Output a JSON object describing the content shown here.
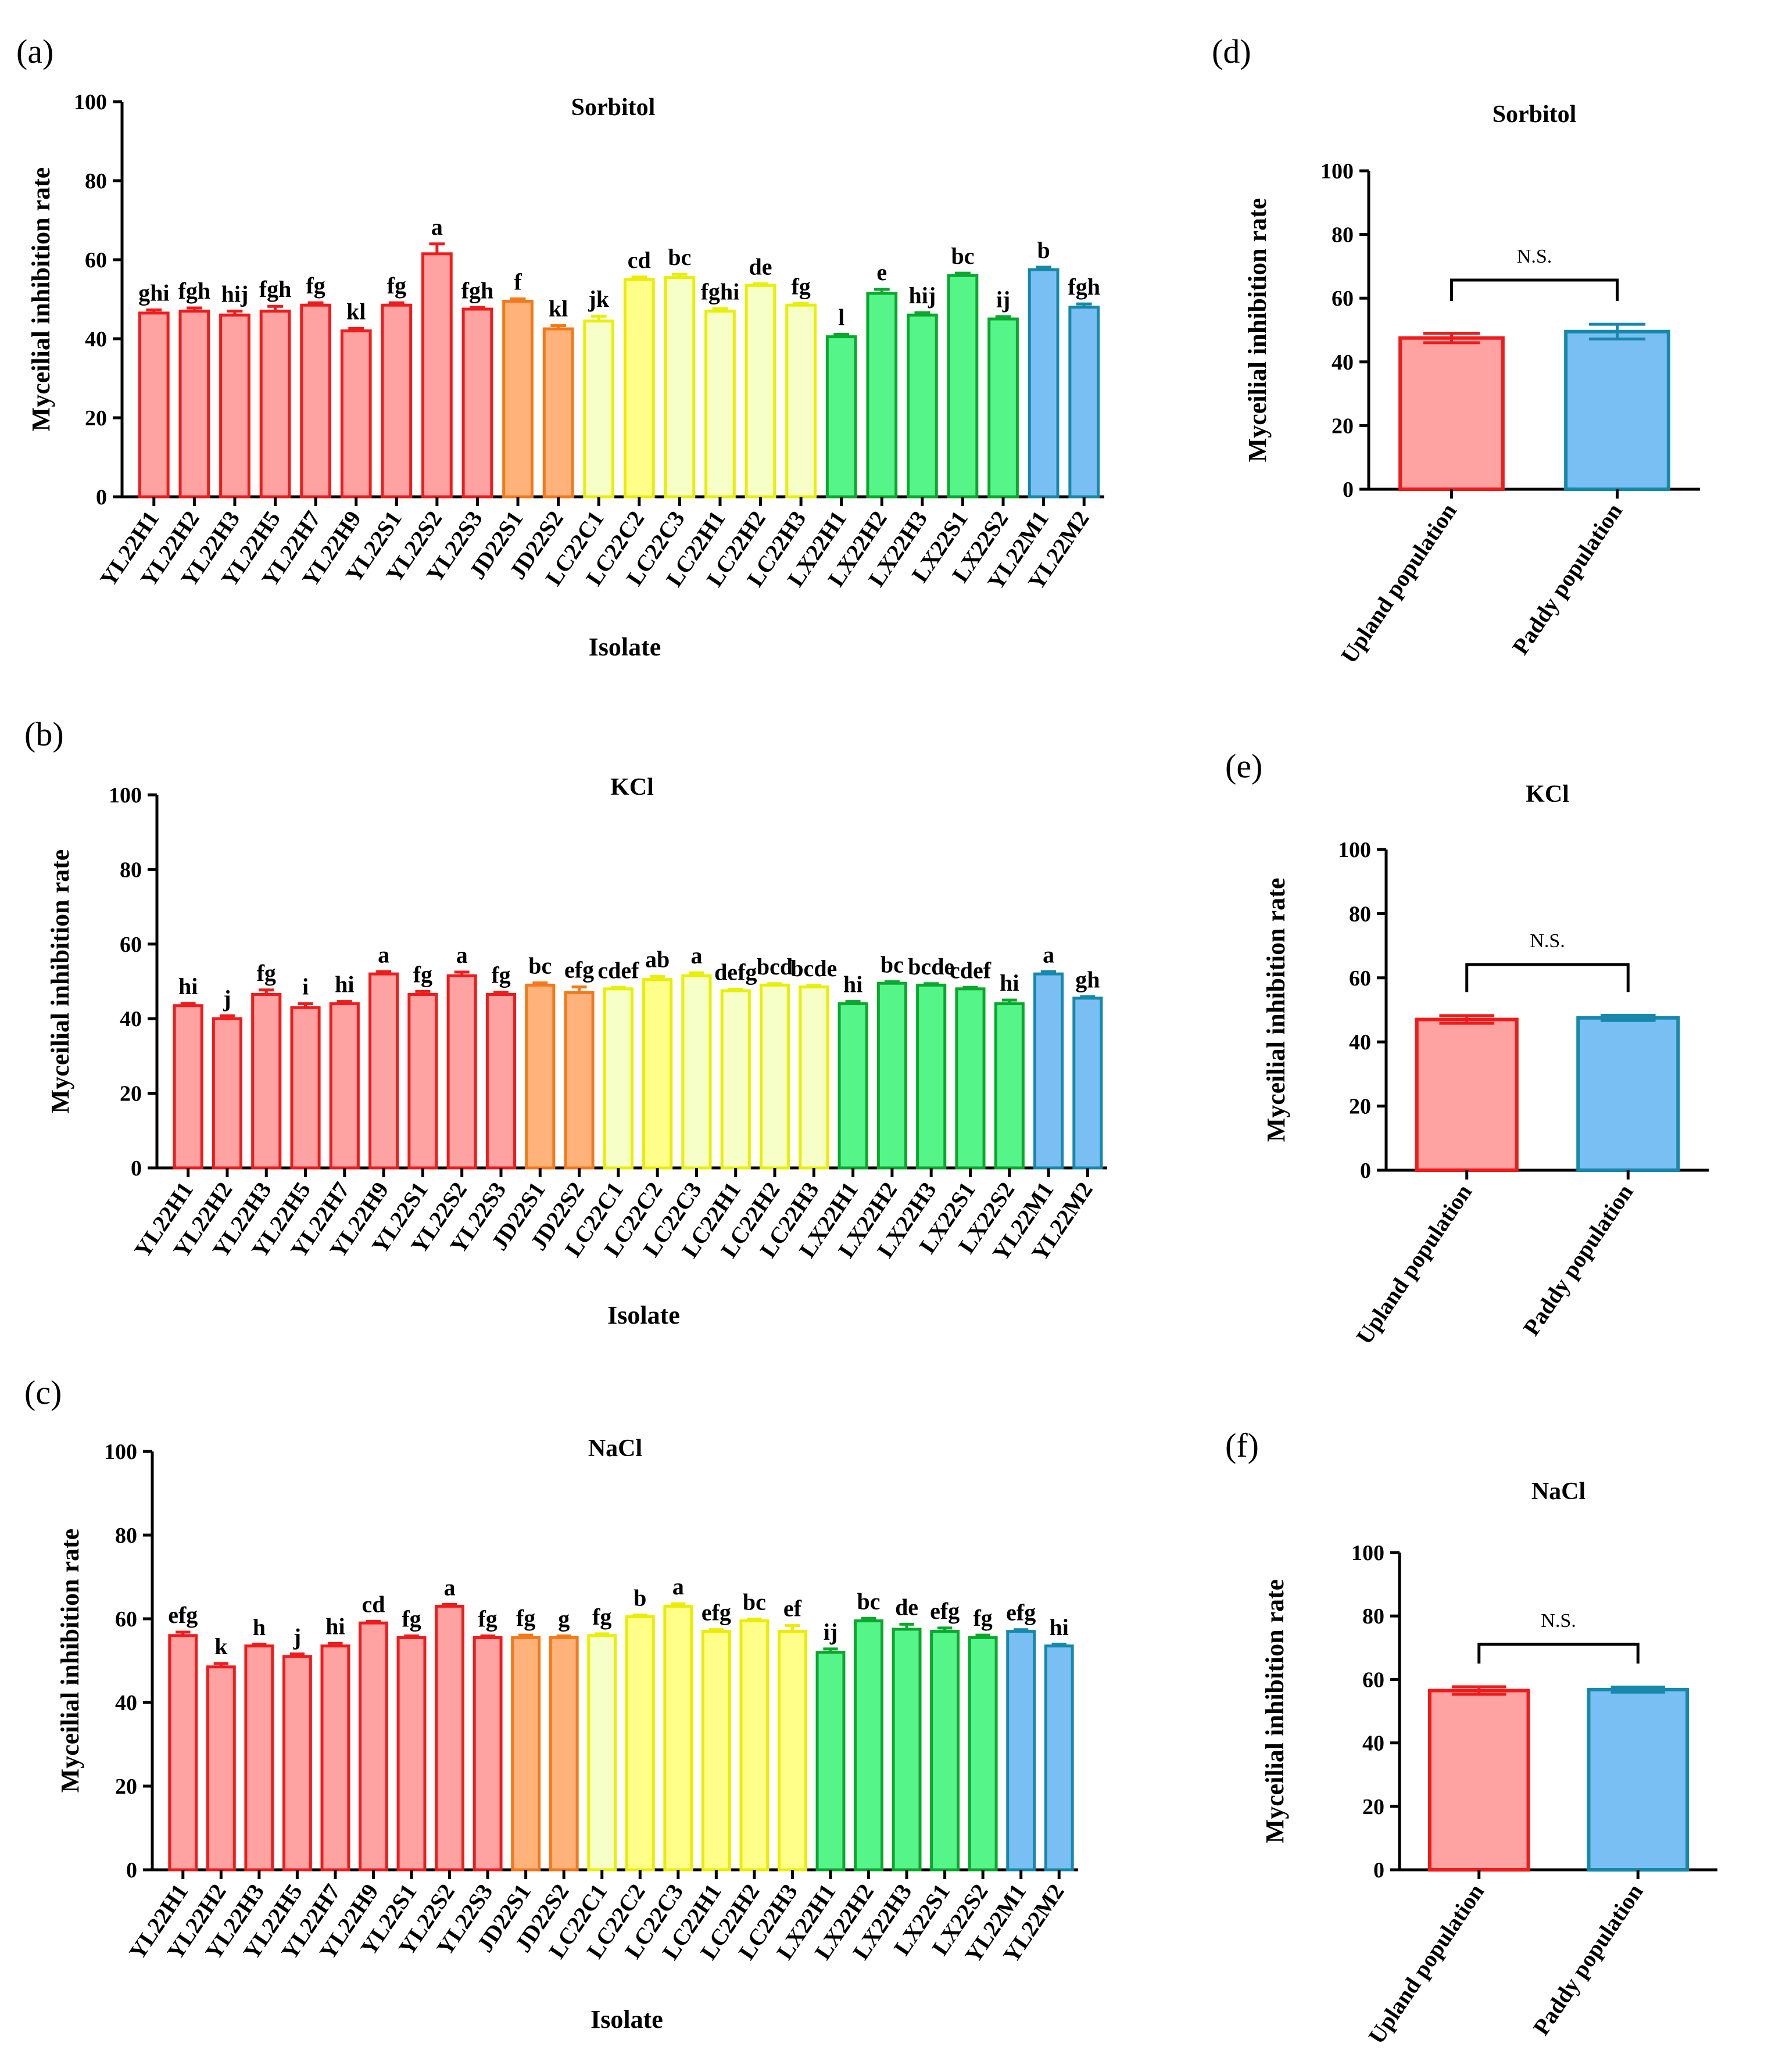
{
  "colors": {
    "red": {
      "fill": "#ffa2a2",
      "stroke": "#ee1c1c"
    },
    "orange": {
      "fill": "#ffb27a",
      "stroke": "#f47919"
    },
    "yellow_pale": {
      "fill": "#f6ffc8",
      "stroke": "#e6f000"
    },
    "yellow": {
      "fill": "#ffff8a",
      "stroke": "#ecec00"
    },
    "green": {
      "fill": "#55f58a",
      "stroke": "#0aa82c"
    },
    "blue": {
      "fill": "#79bff4",
      "stroke": "#1689ab"
    }
  },
  "chart_data": [
    {
      "id": "a",
      "panel": "(a)",
      "type": "bar",
      "title": "Sorbitol",
      "xlabel": "Isolate",
      "ylabel": "Myceilial inhibition rate",
      "ylim": [
        0,
        100
      ],
      "yticks": [
        0,
        20,
        40,
        60,
        80,
        100
      ],
      "categories": [
        "YL22H1",
        "YL22H2",
        "YL22H3",
        "YL22H5",
        "YL22H7",
        "YL22H9",
        "YL22S1",
        "YL22S2",
        "YL22S3",
        "JD22S1",
        "JD22S2",
        "LC22C1",
        "LC22C2",
        "LC22C3",
        "LC22H1",
        "LC22H2",
        "LC22H3",
        "LX22H1",
        "LX22H2",
        "LX22H3",
        "LX22S1",
        "LX22S2",
        "YL22M1",
        "YL22M2"
      ],
      "values": [
        46.5,
        47.0,
        46.0,
        47.0,
        48.5,
        42.0,
        48.5,
        61.5,
        47.5,
        49.5,
        42.5,
        44.5,
        55.0,
        55.5,
        47.0,
        53.5,
        48.5,
        40.5,
        51.5,
        46.0,
        56.0,
        45.0,
        57.5,
        48.0
      ],
      "errors": [
        0.8,
        0.8,
        1.0,
        1.2,
        0.6,
        0.6,
        0.6,
        2.5,
        0.4,
        0.6,
        0.8,
        1.2,
        0.6,
        0.8,
        0.6,
        0.4,
        0.4,
        0.6,
        1.0,
        0.6,
        0.6,
        0.6,
        0.6,
        0.8
      ],
      "letters": [
        "ghi",
        "fgh",
        "hij",
        "fgh",
        "fg",
        "kl",
        "fg",
        "a",
        "fgh",
        "f",
        "kl",
        "jk",
        "cd",
        "bc",
        "fghi",
        "de",
        "fg",
        "l",
        "e",
        "hij",
        "bc",
        "ij",
        "b",
        "fgh"
      ],
      "groups": [
        "red",
        "red",
        "red",
        "red",
        "red",
        "red",
        "red",
        "red",
        "red",
        "orange",
        "orange",
        "yellow_pale",
        "yellow",
        "yellow_pale",
        "yellow_pale",
        "yellow_pale",
        "yellow_pale",
        "green",
        "green",
        "green",
        "green",
        "green",
        "blue",
        "blue"
      ]
    },
    {
      "id": "b",
      "panel": "(b)",
      "type": "bar",
      "title": "KCl",
      "xlabel": "Isolate",
      "ylabel": "Myceilial inhibition rate",
      "ylim": [
        0,
        100
      ],
      "yticks": [
        0,
        20,
        40,
        60,
        80,
        100
      ],
      "categories": [
        "YL22H1",
        "YL22H2",
        "YL22H3",
        "YL22H5",
        "YL22H7",
        "YL22H9",
        "YL22S1",
        "YL22S2",
        "YL22S3",
        "JD22S1",
        "JD22S2",
        "LC22C1",
        "LC22C2",
        "LC22C3",
        "LC22H1",
        "LC22H2",
        "LC22H3",
        "LX22H1",
        "LX22H2",
        "LX22H3",
        "LX22S1",
        "LX22S2",
        "YL22M1",
        "YL22M2"
      ],
      "values": [
        43.5,
        40.0,
        46.5,
        43.0,
        44.0,
        52.0,
        46.5,
        51.5,
        46.5,
        49.0,
        47.0,
        48.0,
        50.5,
        51.5,
        47.5,
        49.0,
        48.5,
        44.0,
        49.5,
        49.0,
        48.0,
        44.0,
        52.0,
        45.5
      ],
      "errors": [
        0.6,
        0.8,
        1.2,
        1.0,
        0.6,
        0.6,
        0.8,
        1.0,
        0.6,
        0.6,
        1.5,
        0.4,
        0.8,
        0.8,
        0.4,
        0.4,
        0.4,
        0.6,
        0.4,
        0.4,
        0.4,
        1.0,
        0.6,
        0.4
      ],
      "letters": [
        "hi",
        "j",
        "fg",
        "i",
        "hi",
        "a",
        "fg",
        "a",
        "fg",
        "bc",
        "efg",
        "cdef",
        "ab",
        "a",
        "defg",
        "bcd",
        "bcde",
        "hi",
        "bc",
        "bcde",
        "cdef",
        "hi",
        "a",
        "gh"
      ],
      "groups": [
        "red",
        "red",
        "red",
        "red",
        "red",
        "red",
        "red",
        "red",
        "red",
        "orange",
        "orange",
        "yellow_pale",
        "yellow",
        "yellow_pale",
        "yellow_pale",
        "yellow_pale",
        "yellow_pale",
        "green",
        "green",
        "green",
        "green",
        "green",
        "blue",
        "blue"
      ]
    },
    {
      "id": "c",
      "panel": "(c)",
      "type": "bar",
      "title": "NaCl",
      "xlabel": "Isolate",
      "ylabel": "Myceilial inhibition rate",
      "ylim": [
        0,
        100
      ],
      "yticks": [
        0,
        20,
        40,
        60,
        80,
        100
      ],
      "categories": [
        "YL22H1",
        "YL22H2",
        "YL22H3",
        "YL22H5",
        "YL22H7",
        "YL22H9",
        "YL22S1",
        "YL22S2",
        "YL22S3",
        "JD22S1",
        "JD22S2",
        "LC22C1",
        "LC22C2",
        "LC22C3",
        "LC22H1",
        "LC22H2",
        "LC22H3",
        "LX22H1",
        "LX22H2",
        "LX22H3",
        "LX22S1",
        "LX22S2",
        "YL22M1",
        "YL22M2"
      ],
      "values": [
        56.0,
        48.5,
        53.5,
        51.0,
        53.5,
        59.0,
        55.5,
        63.0,
        55.5,
        55.5,
        55.5,
        56.0,
        60.5,
        63.0,
        57.0,
        59.5,
        57.0,
        52.0,
        59.5,
        57.5,
        57.0,
        55.5,
        57.0,
        53.5
      ],
      "errors": [
        0.8,
        0.8,
        0.4,
        0.6,
        0.6,
        0.4,
        0.4,
        0.4,
        0.4,
        0.6,
        0.4,
        0.4,
        0.4,
        0.6,
        0.4,
        0.4,
        1.4,
        0.8,
        0.6,
        1.2,
        0.8,
        0.6,
        0.4,
        0.4
      ],
      "letters": [
        "efg",
        "k",
        "h",
        "j",
        "hi",
        "cd",
        "fg",
        "a",
        "fg",
        "fg",
        "g",
        "fg",
        "b",
        "a",
        "efg",
        "bc",
        "ef",
        "ij",
        "bc",
        "de",
        "efg",
        "fg",
        "efg",
        "hi"
      ],
      "groups": [
        "red",
        "red",
        "red",
        "red",
        "red",
        "red",
        "red",
        "red",
        "red",
        "orange",
        "orange",
        "yellow_pale",
        "yellow",
        "yellow",
        "yellow",
        "yellow",
        "yellow",
        "green",
        "green",
        "green",
        "green",
        "green",
        "blue",
        "blue"
      ]
    },
    {
      "id": "d",
      "panel": "(d)",
      "type": "bar",
      "title": "Sorbitol",
      "xlabel": "",
      "ylabel": "Myceilial inhibition rate",
      "ylim": [
        0,
        100
      ],
      "yticks": [
        0,
        20,
        40,
        60,
        80,
        100
      ],
      "categories": [
        "Upland population",
        "Paddy population"
      ],
      "values": [
        47.5,
        49.5
      ],
      "errors": [
        1.5,
        2.3
      ],
      "groups": [
        "red",
        "blue"
      ],
      "annotation": "N.S."
    },
    {
      "id": "e",
      "panel": "(e)",
      "type": "bar",
      "title": "KCl",
      "xlabel": "",
      "ylabel": "Myceilial inhibition rate",
      "ylim": [
        0,
        100
      ],
      "yticks": [
        0,
        20,
        40,
        60,
        80,
        100
      ],
      "categories": [
        "Upland population",
        "Paddy population"
      ],
      "values": [
        47.0,
        47.5
      ],
      "errors": [
        1.2,
        0.8
      ],
      "groups": [
        "red",
        "blue"
      ],
      "annotation": "N.S."
    },
    {
      "id": "f",
      "panel": "(f)",
      "type": "bar",
      "title": "NaCl",
      "xlabel": "",
      "ylabel": "Myceilial inhibition rate",
      "ylim": [
        0,
        100
      ],
      "yticks": [
        0,
        20,
        40,
        60,
        80,
        100
      ],
      "categories": [
        "Upland population",
        "Paddy population"
      ],
      "values": [
        56.5,
        56.8
      ],
      "errors": [
        1.2,
        0.8
      ],
      "groups": [
        "red",
        "blue"
      ],
      "annotation": "N.S."
    }
  ]
}
